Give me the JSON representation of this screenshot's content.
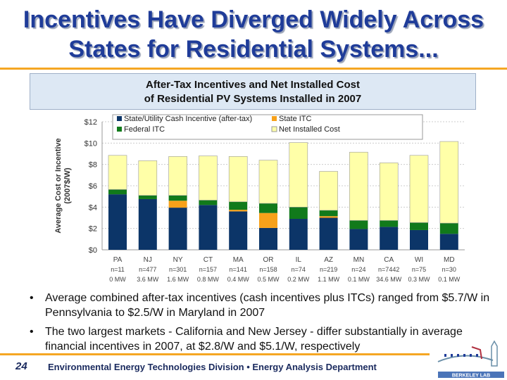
{
  "slide": {
    "title_line1": "Incentives Have Diverged Widely Across",
    "title_line2": "States for Residential Systems...",
    "bullets": [
      "Average combined after-tax incentives (cash incentives plus ITCs) ranged from $5.7/W in Pennsylvania to $2.5/W in Maryland in 2007",
      "The two largest markets - California and New Jersey - differ substantially in average financial incentives in 2007, at $2.8/W and $5.1/W, respectively"
    ],
    "page_number": "24",
    "footer": "Environmental Energy Technologies Division • Energy Analysis Department",
    "logo_text": "BERKELEY LAB"
  },
  "chart_data": {
    "type": "bar",
    "stacked": true,
    "title_line1": "After-Tax Incentives and Net Installed Cost",
    "title_line2": "of Residential PV Systems Installed in 2007",
    "ylabel_line1": "Average Cost or Incentive",
    "ylabel_line2": "(2007$/W)",
    "ylim": [
      0,
      12
    ],
    "yticks": [
      "$0",
      "$2",
      "$4",
      "$6",
      "$8",
      "$10",
      "$12"
    ],
    "grid": true,
    "legend_placement": "top",
    "categories": [
      "PA",
      "NJ",
      "NY",
      "CT",
      "MA",
      "OR",
      "IL",
      "AZ",
      "MN",
      "CA",
      "WI",
      "MD"
    ],
    "sample_sizes": [
      "n=11",
      "n=477",
      "n=301",
      "n=157",
      "n=141",
      "n=158",
      "n=74",
      "n=219",
      "n=24",
      "n=7442",
      "n=75",
      "n=30"
    ],
    "capacities": [
      "0 MW",
      "3.6 MW",
      "1.6 MW",
      "0.8 MW",
      "0.4 MW",
      "0.5 MW",
      "0.2 MW",
      "1.1 MW",
      "0.1 MW",
      "34.6 MW",
      "0.3 MW",
      "0.1 MW"
    ],
    "series": [
      {
        "name": "State/Utility Cash Incentive (after-tax)",
        "color": "#0c3568",
        "values": [
          5.2,
          4.75,
          3.95,
          4.2,
          3.6,
          2.05,
          2.9,
          3.0,
          1.95,
          2.15,
          1.85,
          1.5
        ]
      },
      {
        "name": "State ITC",
        "color": "#f7a11a",
        "values": [
          0,
          0,
          0.65,
          0,
          0.15,
          1.4,
          0,
          0.15,
          0,
          0,
          0,
          0
        ]
      },
      {
        "name": "Federal ITC",
        "color": "#117a1b",
        "values": [
          0.45,
          0.35,
          0.5,
          0.45,
          0.75,
          0.9,
          1.1,
          0.55,
          0.8,
          0.6,
          0.7,
          1.0
        ]
      },
      {
        "name": "Net Installed Cost",
        "color": "#ffffa8",
        "values": [
          3.2,
          3.25,
          3.65,
          4.15,
          4.25,
          4.05,
          6.05,
          3.65,
          6.4,
          5.4,
          6.3,
          7.65
        ]
      }
    ]
  }
}
